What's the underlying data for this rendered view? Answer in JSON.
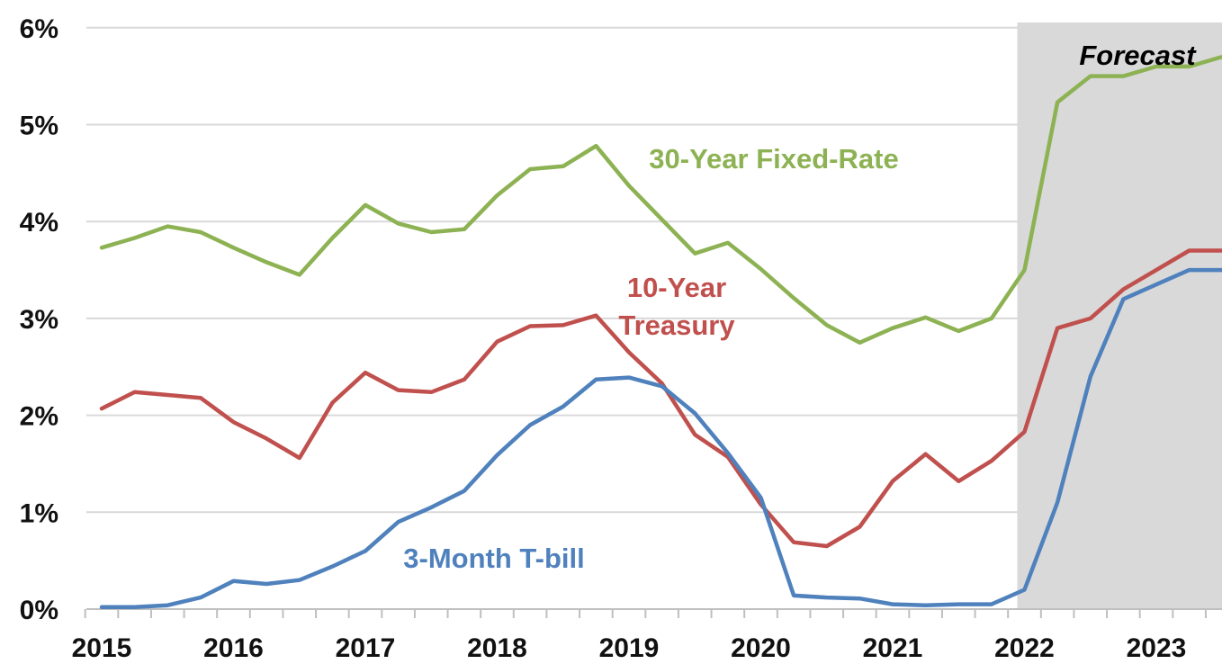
{
  "chart_data": {
    "type": "line",
    "title": "",
    "xlabel": "",
    "ylabel": "",
    "y_unit": "%",
    "ylim": [
      0,
      6
    ],
    "y_ticks": [
      0,
      1,
      2,
      3,
      4,
      5,
      6
    ],
    "y_tick_labels": [
      "0%",
      "1%",
      "2%",
      "3%",
      "4%",
      "5%",
      "6%"
    ],
    "x_ticks": [
      2015,
      2016,
      2017,
      2018,
      2019,
      2020,
      2021,
      2022,
      2023
    ],
    "x_tick_labels": [
      "2015",
      "2016",
      "2017",
      "2018",
      "2019",
      "2020",
      "2021",
      "2022",
      "2023"
    ],
    "grid": true,
    "x": [
      2015.0,
      2015.25,
      2015.5,
      2015.75,
      2016.0,
      2016.25,
      2016.5,
      2016.75,
      2017.0,
      2017.25,
      2017.5,
      2017.75,
      2018.0,
      2018.25,
      2018.5,
      2018.75,
      2019.0,
      2019.25,
      2019.5,
      2019.75,
      2020.0,
      2020.25,
      2020.5,
      2020.75,
      2021.0,
      2021.25,
      2021.5,
      2021.75,
      2022.0,
      2022.25,
      2022.5,
      2022.75,
      2023.0,
      2023.25,
      2023.5
    ],
    "forecast_region": {
      "label": "Forecast",
      "x_start": 2022.0,
      "x_end": 2023.5,
      "color": "#d9d9d9"
    },
    "series": [
      {
        "name": "30-Year Fixed-Rate",
        "color": "#8db253",
        "values": [
          3.73,
          3.83,
          3.95,
          3.89,
          3.73,
          3.58,
          3.45,
          3.83,
          4.17,
          3.98,
          3.89,
          3.92,
          4.27,
          4.54,
          4.57,
          4.78,
          4.37,
          4.02,
          3.67,
          3.78,
          3.51,
          3.21,
          2.93,
          2.75,
          2.9,
          3.01,
          2.87,
          3.0,
          3.5,
          5.23,
          5.5,
          5.5,
          5.6,
          5.6,
          5.7
        ]
      },
      {
        "name": "10-Year Treasury",
        "color": "#c0504d",
        "values": [
          2.07,
          2.24,
          2.21,
          2.18,
          1.93,
          1.76,
          1.56,
          2.13,
          2.44,
          2.26,
          2.24,
          2.37,
          2.76,
          2.92,
          2.93,
          3.03,
          2.65,
          2.33,
          1.8,
          1.57,
          1.08,
          0.69,
          0.65,
          0.85,
          1.32,
          1.6,
          1.32,
          1.53,
          1.83,
          2.9,
          3.0,
          3.3,
          3.5,
          3.7,
          3.7
        ]
      },
      {
        "name": "3-Month T-bill",
        "color": "#4f81bd",
        "values": [
          0.02,
          0.02,
          0.04,
          0.12,
          0.29,
          0.26,
          0.3,
          0.44,
          0.6,
          0.9,
          1.05,
          1.22,
          1.59,
          1.9,
          2.09,
          2.37,
          2.39,
          2.3,
          2.02,
          1.61,
          1.15,
          0.14,
          0.12,
          0.11,
          0.05,
          0.04,
          0.05,
          0.05,
          0.2,
          1.1,
          2.4,
          3.2,
          3.35,
          3.5,
          3.5
        ]
      }
    ]
  }
}
